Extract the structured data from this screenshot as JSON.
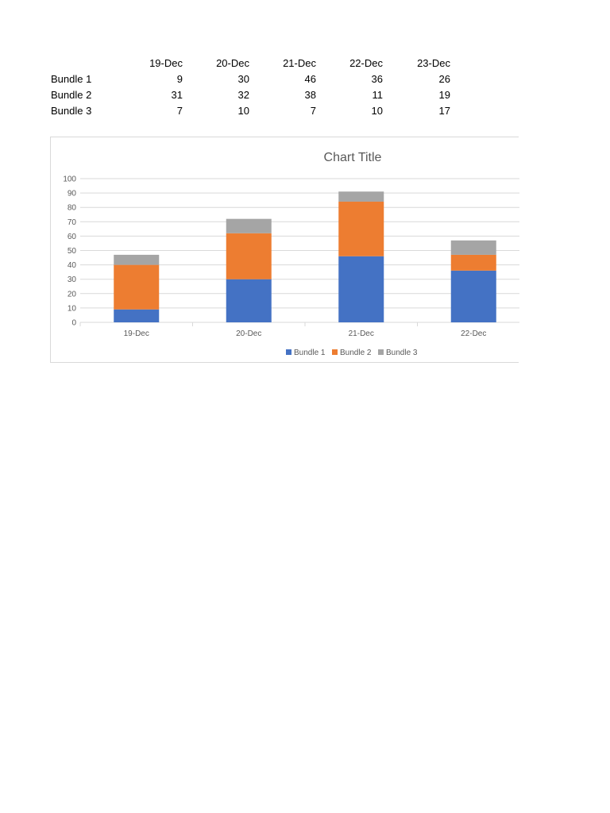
{
  "table": {
    "header": [
      "19-Dec",
      "20-Dec",
      "21-Dec",
      "22-Dec",
      "23-Dec"
    ],
    "rows": [
      {
        "label": "Bundle 1",
        "values": [
          "9",
          "30",
          "46",
          "36",
          "26"
        ]
      },
      {
        "label": "Bundle 2",
        "values": [
          "31",
          "32",
          "38",
          "11",
          "19"
        ]
      },
      {
        "label": "Bundle 3",
        "values": [
          "7",
          "10",
          "7",
          "10",
          "17"
        ]
      }
    ]
  },
  "chart_data": {
    "type": "bar",
    "stacked": true,
    "title": "Chart Title",
    "categories": [
      "19-Dec",
      "20-Dec",
      "21-Dec",
      "22-Dec"
    ],
    "series": [
      {
        "name": "Bundle 1",
        "values": [
          9,
          30,
          46,
          36
        ],
        "color": "#4472c4"
      },
      {
        "name": "Bundle 2",
        "values": [
          31,
          32,
          38,
          11
        ],
        "color": "#ed7d31"
      },
      {
        "name": "Bundle 3",
        "values": [
          7,
          10,
          7,
          10
        ],
        "color": "#a5a5a5"
      }
    ],
    "ylim": [
      0,
      100
    ],
    "yticks": [
      "0",
      "10",
      "20",
      "30",
      "40",
      "50",
      "60",
      "70",
      "80",
      "90",
      "100"
    ],
    "grid": true,
    "legend_position": "bottom",
    "colors": {
      "gridline": "#d9d9d9",
      "axis_text": "#595959",
      "title_text": "#595959"
    }
  }
}
